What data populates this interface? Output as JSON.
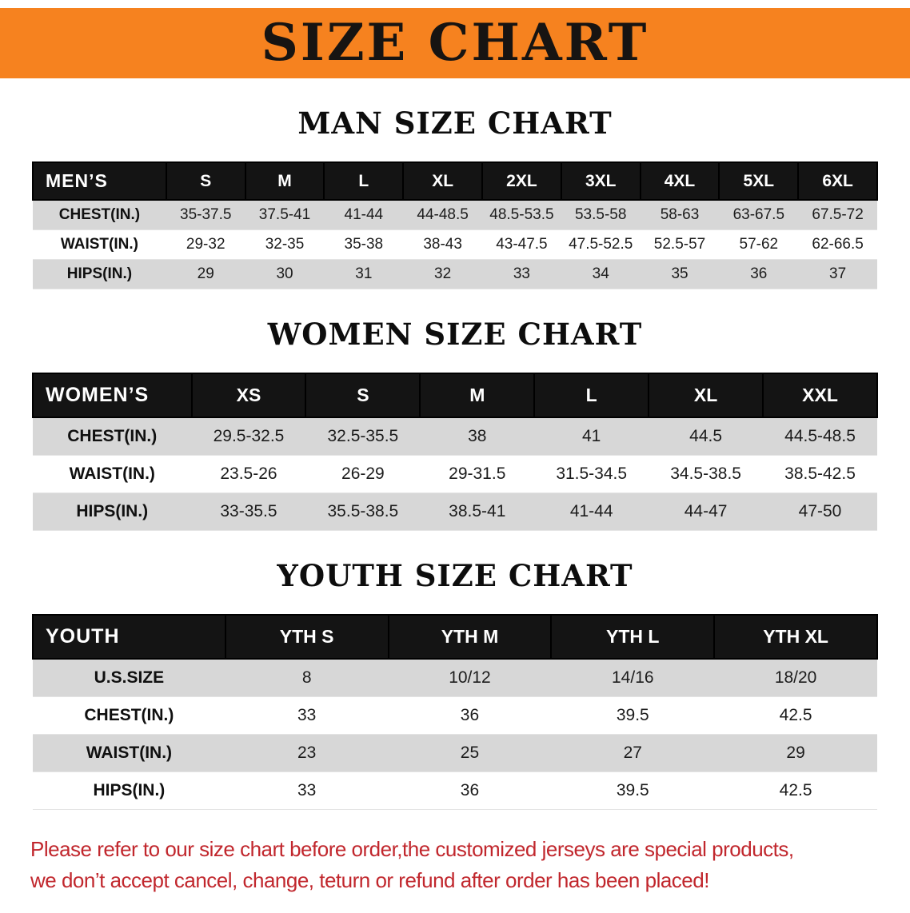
{
  "banner": {
    "title": "SIZE CHART"
  },
  "chart_data": [
    {
      "type": "table",
      "id": "men",
      "title": "MAN SIZE CHART",
      "columns": [
        "MEN’S",
        "S",
        "M",
        "L",
        "XL",
        "2XL",
        "3XL",
        "4XL",
        "5XL",
        "6XL"
      ],
      "rows": [
        [
          "CHEST(IN.)",
          "35-37.5",
          "37.5-41",
          "41-44",
          "44-48.5",
          "48.5-53.5",
          "53.5-58",
          "58-63",
          "63-67.5",
          "67.5-72"
        ],
        [
          "WAIST(IN.)",
          "29-32",
          "32-35",
          "35-38",
          "38-43",
          "43-47.5",
          "47.5-52.5",
          "52.5-57",
          "57-62",
          "62-66.5"
        ],
        [
          "HIPS(IN.)",
          "29",
          "30",
          "31",
          "32",
          "33",
          "34",
          "35",
          "36",
          "37"
        ]
      ]
    },
    {
      "type": "table",
      "id": "women",
      "title": "WOMEN SIZE CHART",
      "columns": [
        "WOMEN’S",
        "XS",
        "S",
        "M",
        "L",
        "XL",
        "XXL"
      ],
      "rows": [
        [
          "CHEST(IN.)",
          "29.5-32.5",
          "32.5-35.5",
          "38",
          "41",
          "44.5",
          "44.5-48.5"
        ],
        [
          "WAIST(IN.)",
          "23.5-26",
          "26-29",
          "29-31.5",
          "31.5-34.5",
          "34.5-38.5",
          "38.5-42.5"
        ],
        [
          "HIPS(IN.)",
          "33-35.5",
          "35.5-38.5",
          "38.5-41",
          "41-44",
          "44-47",
          "47-50"
        ]
      ]
    },
    {
      "type": "table",
      "id": "youth",
      "title": "YOUTH SIZE CHART",
      "columns": [
        "YOUTH",
        "YTH S",
        "YTH M",
        "YTH L",
        "YTH XL"
      ],
      "rows": [
        [
          "U.S.SIZE",
          "8",
          "10/12",
          "14/16",
          "18/20"
        ],
        [
          "CHEST(IN.)",
          "33",
          "36",
          "39.5",
          "42.5"
        ],
        [
          "WAIST(IN.)",
          "23",
          "25",
          "27",
          "29"
        ],
        [
          "HIPS(IN.)",
          "33",
          "36",
          "39.5",
          "42.5"
        ]
      ]
    }
  ],
  "footer_note": {
    "line1": "Please refer to our size chart before order,the customized jerseys are special products,",
    "line2": "we don’t accept cancel, change, teturn or refund after order has been placed!"
  },
  "colors": {
    "banner_bg": "#F6821F",
    "table_header_bg": "#141414",
    "row_stripe": "#D7D7D7",
    "note_red": "#C1272D"
  }
}
